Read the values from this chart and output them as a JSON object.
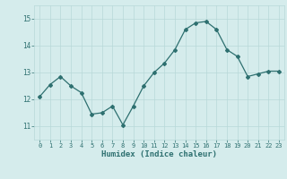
{
  "x": [
    0,
    1,
    2,
    3,
    4,
    5,
    6,
    7,
    8,
    9,
    10,
    11,
    12,
    13,
    14,
    15,
    16,
    17,
    18,
    19,
    20,
    21,
    22,
    23
  ],
  "y": [
    12.1,
    12.55,
    12.85,
    12.5,
    12.25,
    11.45,
    11.5,
    11.75,
    11.05,
    11.75,
    12.5,
    13.0,
    13.35,
    13.85,
    14.6,
    14.85,
    14.9,
    14.6,
    13.85,
    13.6,
    12.85,
    12.95,
    13.05,
    13.05
  ],
  "line_color": "#2e7070",
  "marker": "D",
  "marker_size": 2.0,
  "bg_color": "#d5ecec",
  "grid_color": "#b8d8d8",
  "tick_color": "#2e7070",
  "label_color": "#2e7070",
  "xlabel": "Humidex (Indice chaleur)",
  "ylim": [
    10.5,
    15.5
  ],
  "xlim": [
    -0.5,
    23.5
  ],
  "yticks": [
    11,
    12,
    13,
    14,
    15
  ],
  "xticks": [
    0,
    1,
    2,
    3,
    4,
    5,
    6,
    7,
    8,
    9,
    10,
    11,
    12,
    13,
    14,
    15,
    16,
    17,
    18,
    19,
    20,
    21,
    22,
    23
  ]
}
